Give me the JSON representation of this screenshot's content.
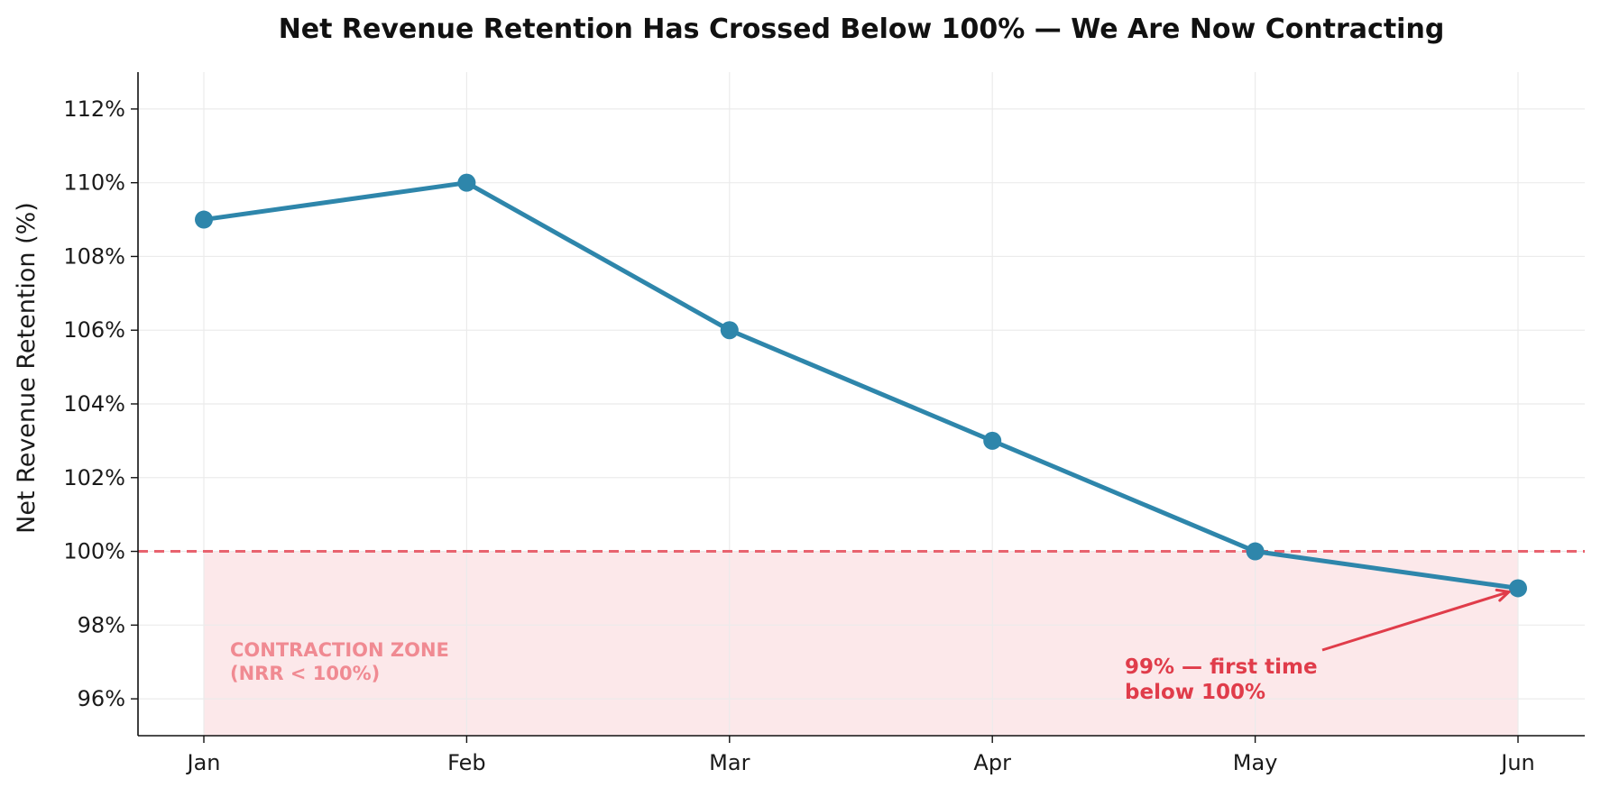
{
  "chart_data": {
    "type": "line",
    "title": "Net Revenue Retention Has Crossed Below 100% — We Are Now Contracting",
    "xlabel": "",
    "ylabel": "Net Revenue Retention (%)",
    "categories": [
      "Jan",
      "Feb",
      "Mar",
      "Apr",
      "May",
      "Jun"
    ],
    "series": [
      {
        "values": [
          109,
          110,
          106,
          103,
          100,
          99
        ],
        "color": "#2e86ab"
      }
    ],
    "ylim": [
      95,
      113
    ],
    "yticks": [
      96,
      98,
      100,
      102,
      104,
      106,
      108,
      110,
      112
    ],
    "ytick_labels": [
      "96%",
      "98%",
      "100%",
      "102%",
      "104%",
      "106%",
      "108%",
      "110%",
      "112%"
    ],
    "grid": true,
    "reference_line": {
      "value": 100,
      "style": "dashed",
      "color": "#e8636f"
    },
    "shaded_region": {
      "from": 95,
      "to": 100,
      "color": "#fce8ea"
    },
    "zone_label": [
      "CONTRACTION ZONE",
      "(NRR < 100%)"
    ],
    "annotation": {
      "lines": [
        "99% — first time",
        "below 100%"
      ],
      "target_category": "Jun",
      "target_value": 99,
      "color": "#e03c4a"
    }
  }
}
